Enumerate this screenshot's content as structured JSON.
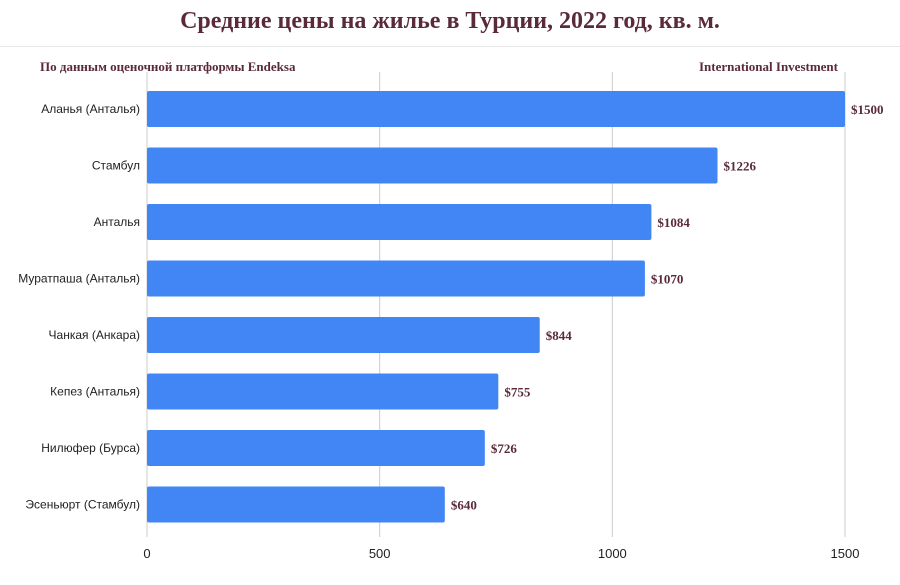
{
  "header": {
    "title": "Средние цены на жилье в Турции, 2022 год, кв. м.",
    "source_left": "По данным оценочной платформы Endeksa",
    "source_right": "International Investment"
  },
  "colors": {
    "bar": "#4285f4",
    "title": "#5a2a3a",
    "value_label": "#5a2a3a",
    "grid": "#cccccc"
  },
  "chart_data": {
    "type": "bar",
    "orientation": "horizontal",
    "title": "Средние цены на жилье в Турции, 2022 год, кв. м.",
    "categories": [
      "Аланья (Анталья)",
      "Стамбул",
      "Анталья",
      "Муратпаша (Анталья)",
      "Чанкая (Анкара)",
      "Кепез (Анталья)",
      "Нилюфер (Бурса)",
      "Эсеньюрт (Стамбул)"
    ],
    "values": [
      1500,
      1226,
      1084,
      1070,
      844,
      755,
      726,
      640
    ],
    "value_labels": [
      "$1500",
      "$1226",
      "$1084",
      "$1070",
      "$844",
      "$755",
      "$726",
      "$640"
    ],
    "xlim": [
      0,
      1500
    ],
    "xticks": [
      0,
      500,
      1000,
      1500
    ],
    "grid": true,
    "legend": "none"
  }
}
